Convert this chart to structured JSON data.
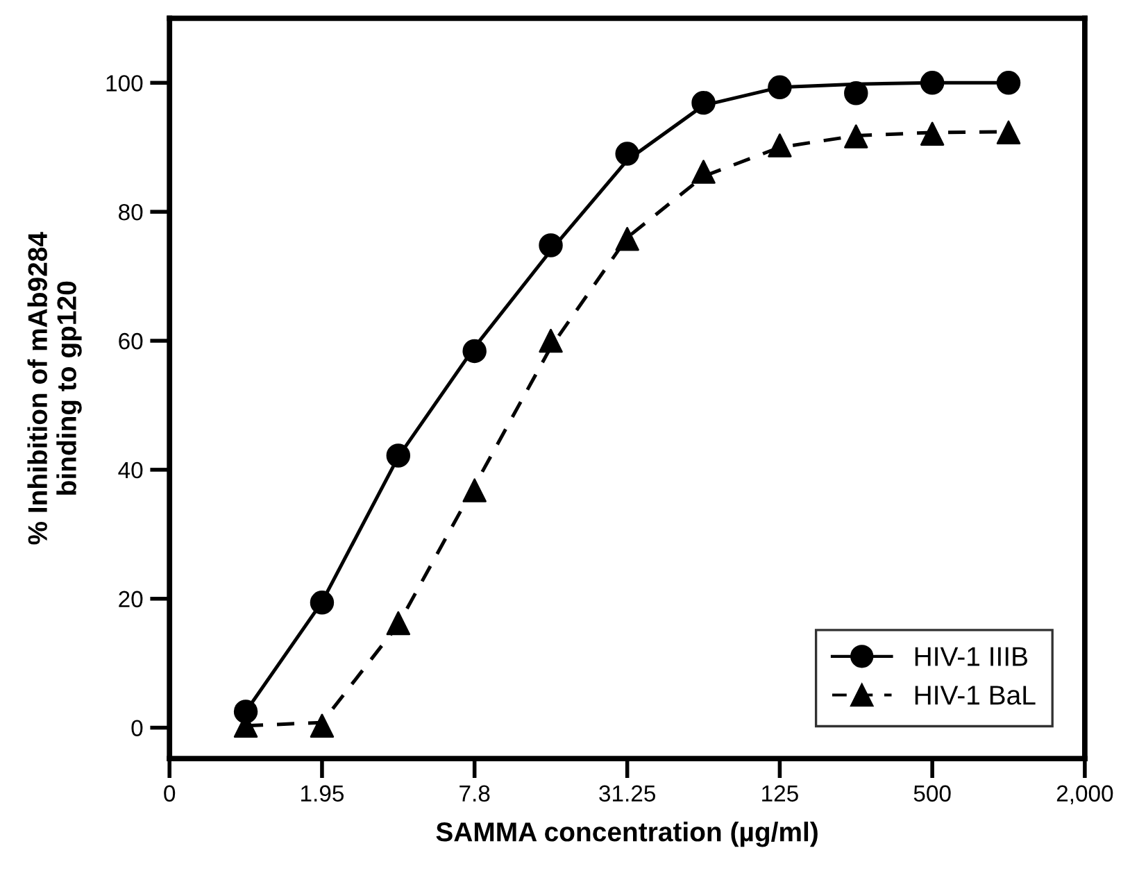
{
  "chart_data": {
    "type": "scatter",
    "xlabel": "SAMMA concentration (µg/ml)",
    "ylabel": "% Inhibition of mAb9284\nbinding to gp120",
    "log": "x",
    "xlim": [
      0.4875,
      2000
    ],
    "xticks": [
      {
        "value": 0.4875,
        "label": "0"
      },
      1.95,
      7.8,
      31.25,
      125,
      500,
      {
        "value": 2000,
        "label": "2,000"
      }
    ],
    "ylim": [
      -4.8,
      110
    ],
    "yticks": [
      0,
      20,
      40,
      60,
      80,
      100
    ],
    "grid": false,
    "legend": "bottom right",
    "series": [
      {
        "name": "HIV-1 IIIB",
        "marker": "circle",
        "color": "#000000",
        "x": [
          0.975,
          1.95,
          3.9,
          7.8,
          15.6,
          31.25,
          62.5,
          125,
          250,
          500,
          1000
        ],
        "values": [
          2.5,
          19.4,
          42.2,
          58.4,
          74.8,
          89,
          96.9,
          99.3,
          98.4,
          100,
          100
        ]
      },
      {
        "type": "line",
        "line_style": "solid",
        "marker": "none",
        "color": "#000000",
        "x": [
          0.975,
          1.95,
          3.9,
          7.8,
          15.6,
          31.25,
          62.5,
          125,
          250,
          500,
          1000
        ],
        "values": [
          2.5,
          19.5,
          42,
          59,
          74,
          88,
          96.5,
          99.3,
          99.8,
          100,
          100
        ]
      },
      {
        "name": "HIV-1 BaL",
        "marker": "triangle",
        "color": "#000000",
        "x": [
          0.975,
          1.95,
          3.9,
          7.8,
          15.6,
          31.25,
          62.5,
          125,
          250,
          500,
          1000
        ],
        "values": [
          0.3,
          0.3,
          16.2,
          36.8,
          60,
          75.8,
          86.2,
          90.3,
          91.7,
          92.1,
          92.3
        ]
      },
      {
        "type": "line",
        "line_style": "dashed",
        "marker": "none",
        "color": "#000000",
        "x": [
          0.975,
          1.95,
          3.9,
          7.8,
          15.6,
          31.25,
          62.5,
          125,
          250,
          500,
          1000
        ],
        "values": [
          0.3,
          0.8,
          16,
          37.5,
          59,
          76,
          85.5,
          90,
          91.8,
          92.3,
          92.4
        ]
      }
    ]
  }
}
